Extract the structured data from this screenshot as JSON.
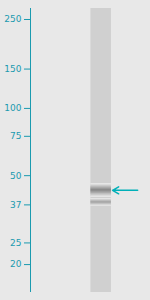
{
  "chart_data": {
    "type": "gel",
    "log": "y",
    "ylim": [
      15,
      280
    ],
    "yticks": [
      250,
      150,
      100,
      75,
      50,
      37,
      25,
      20
    ],
    "tick_labels": "y",
    "color": "#1a9aaf",
    "bands": [
      {
        "center": 43,
        "width": 6,
        "intensity": 0.38
      },
      {
        "center": 38,
        "width": 3,
        "intensity": 0.55
      }
    ],
    "arrow": {
      "y": 43,
      "color": "#00b0b8"
    }
  }
}
